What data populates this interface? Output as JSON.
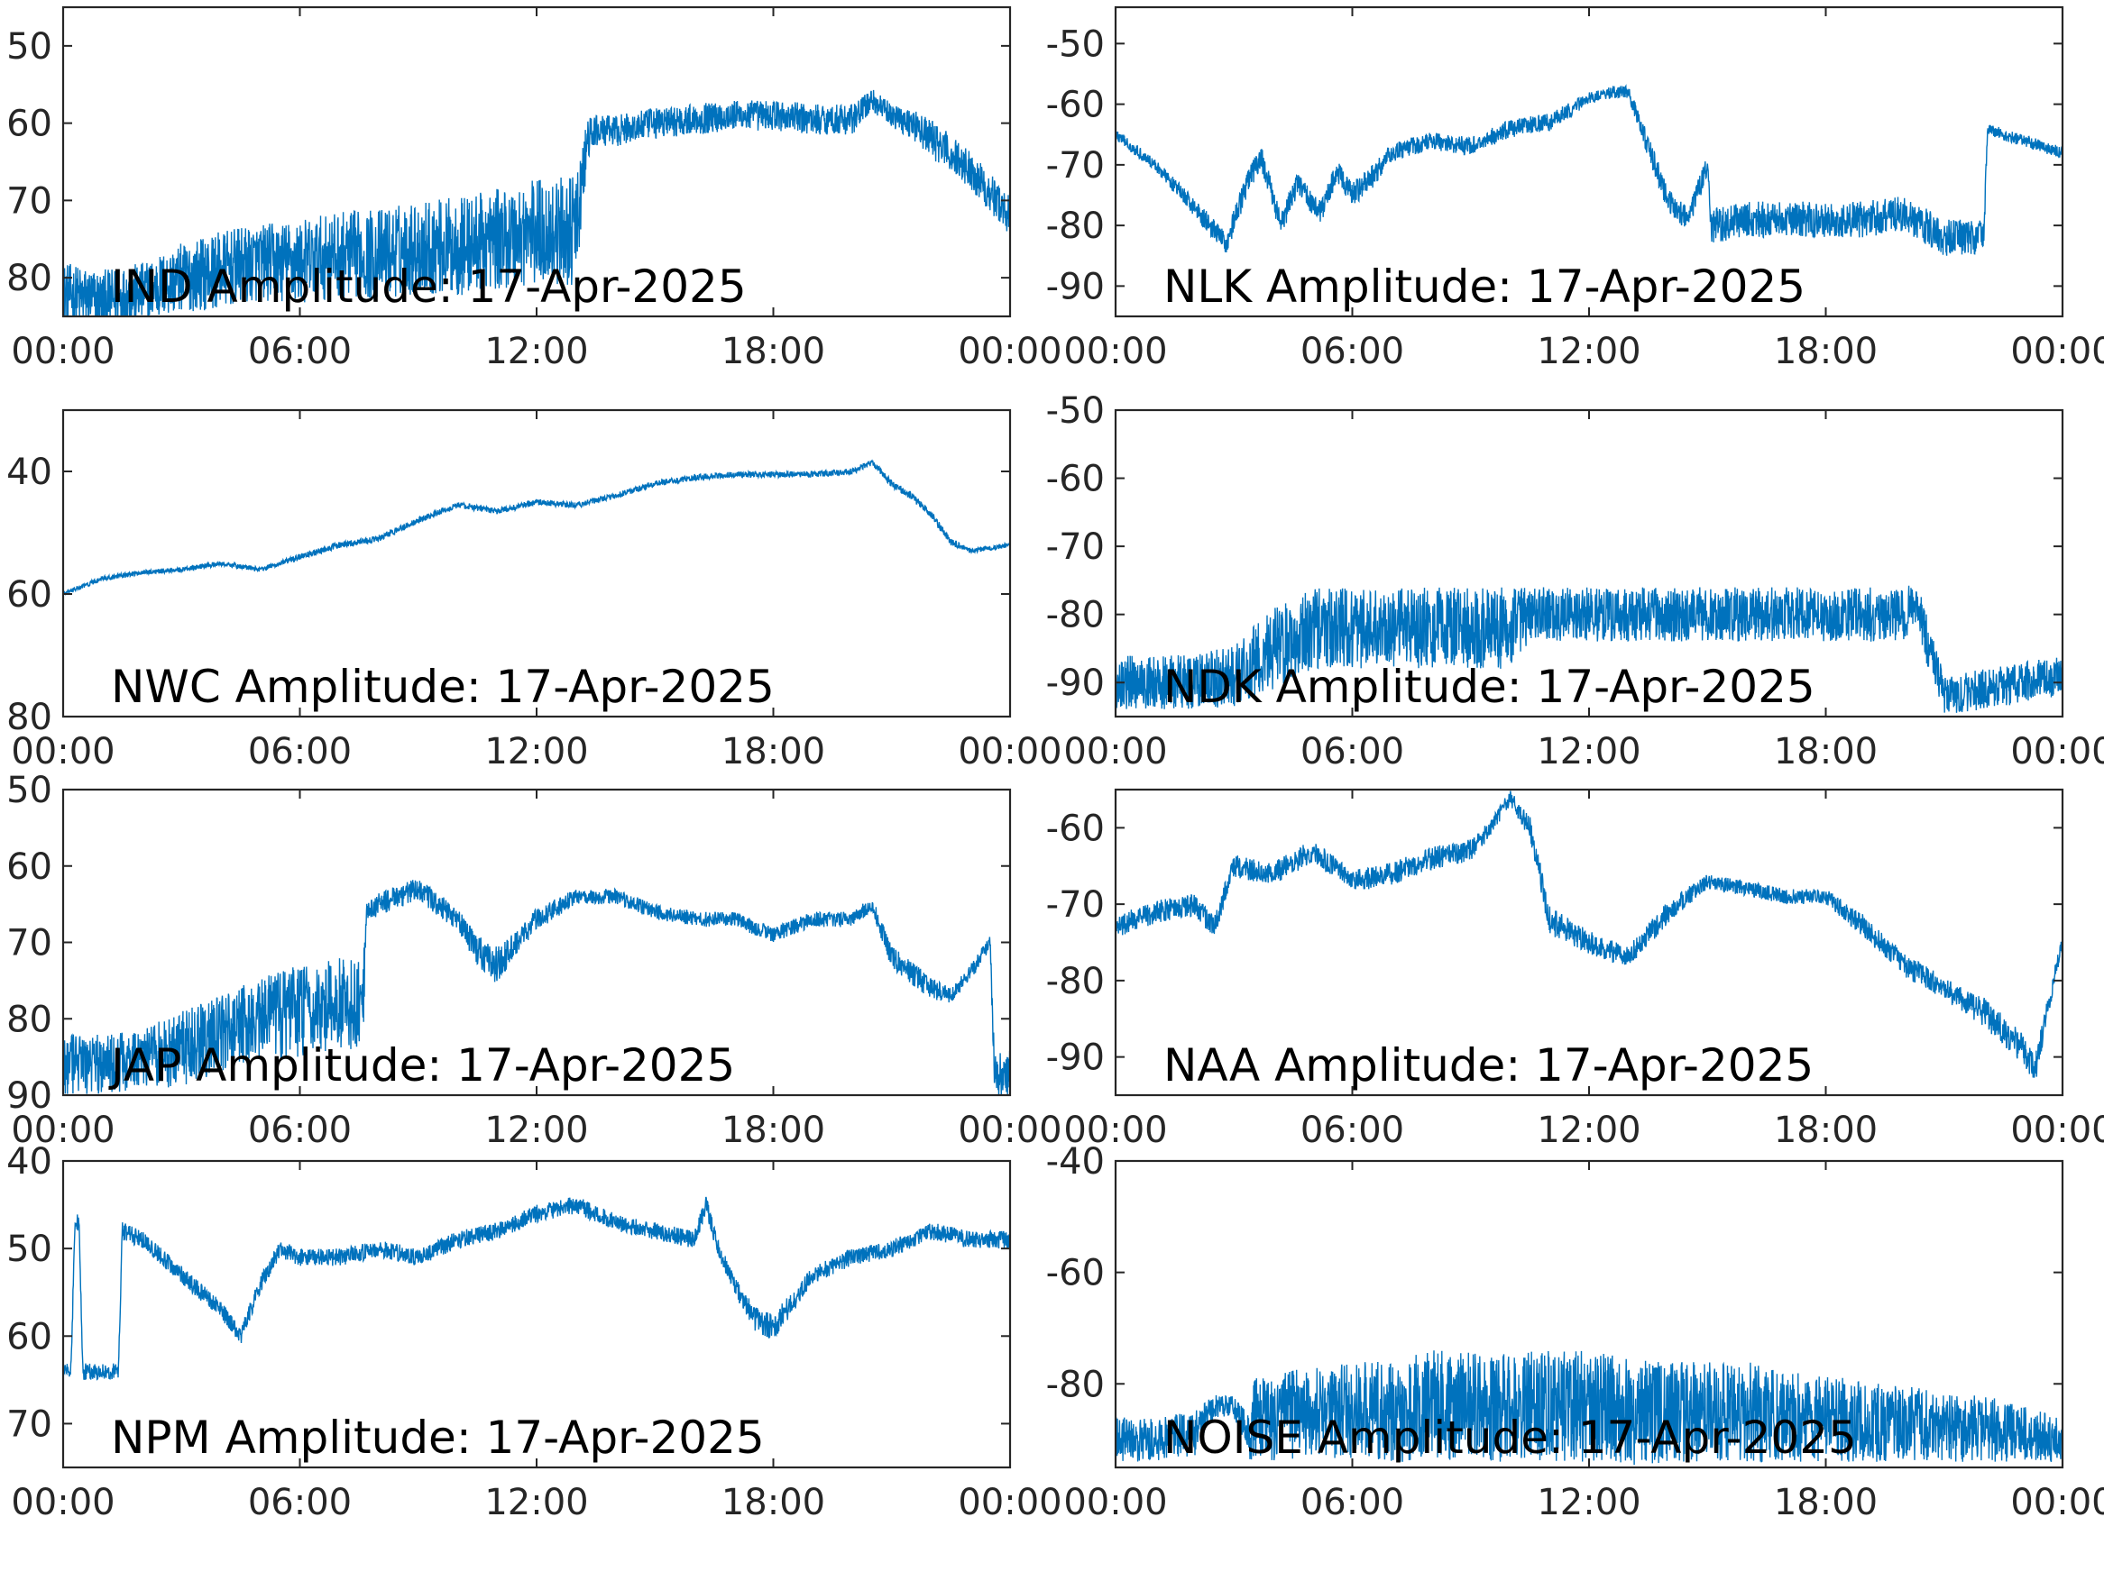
{
  "figure": {
    "line_color": "#0072BD",
    "axis_color": "#262626",
    "background": "#ffffff"
  },
  "chart_data": [
    {
      "type": "line",
      "title": "IND Amplitude: 17-Apr-2025",
      "xlabel": "",
      "ylabel": "",
      "x_ticks": [
        "00:00",
        "06:00",
        "12:00",
        "18:00",
        "00:00"
      ],
      "xlim_hours": [
        0,
        24
      ],
      "y_ticks": [
        -50,
        -60,
        -70,
        -80
      ],
      "y_tick_labels": [
        "50",
        "60",
        "70",
        "80"
      ],
      "ylim": [
        -85,
        -45
      ],
      "grid": false,
      "series": [
        {
          "x_hours": [
            0,
            1,
            2,
            3,
            4,
            5,
            6,
            7,
            8,
            9,
            10,
            11,
            12,
            13,
            13.3,
            13.5,
            14,
            15,
            16,
            17,
            18,
            19,
            20,
            20.5,
            21,
            21.5,
            22,
            23,
            24
          ],
          "values": [
            -82,
            -83,
            -82,
            -80,
            -79,
            -78,
            -78,
            -77,
            -77,
            -76,
            -76,
            -75,
            -74,
            -74,
            -62,
            -61,
            -61,
            -60,
            -59.5,
            -59,
            -59,
            -59.5,
            -59.5,
            -57,
            -59,
            -60,
            -62,
            -66,
            -72
          ],
          "noise_amplitude": [
            4,
            4,
            4,
            4.5,
            5,
            5,
            5.5,
            5.5,
            6,
            6,
            6.5,
            6.5,
            7,
            7,
            3,
            2,
            2,
            2,
            2,
            2,
            2,
            2,
            2,
            1.5,
            1.5,
            2,
            2.5,
            2.5,
            2.5
          ]
        }
      ]
    },
    {
      "type": "line",
      "title": "NLK Amplitude: 17-Apr-2025",
      "xlabel": "",
      "ylabel": "",
      "x_ticks": [
        "00:00",
        "06:00",
        "12:00",
        "18:00",
        "00:00"
      ],
      "xlim_hours": [
        0,
        24
      ],
      "y_ticks": [
        -50,
        -60,
        -70,
        -80,
        -90
      ],
      "y_tick_labels": [
        "-50",
        "-60",
        "-70",
        "-80",
        "-90"
      ],
      "ylim": [
        -95,
        -44
      ],
      "grid": false,
      "series": [
        {
          "x_hours": [
            0,
            1,
            2,
            2.8,
            3.4,
            3.7,
            4.2,
            4.6,
            5.2,
            5.6,
            6,
            6.5,
            7,
            8,
            9,
            10,
            11,
            12,
            12.6,
            13,
            13.5,
            14,
            14.5,
            15,
            15.1,
            16,
            17,
            18,
            19,
            20,
            21,
            22,
            22.1,
            22.5,
            23,
            24
          ],
          "values": [
            -65,
            -70,
            -77,
            -83,
            -72,
            -69,
            -80,
            -73,
            -78,
            -71,
            -75,
            -72,
            -68,
            -66,
            -67,
            -64,
            -63,
            -59,
            -58,
            -58,
            -67,
            -76,
            -79,
            -70,
            -80,
            -79,
            -79,
            -79,
            -79,
            -78,
            -82,
            -82,
            -64,
            -65,
            -66,
            -68
          ],
          "noise_amplitude": [
            1,
            1,
            1.5,
            2,
            2,
            2,
            2,
            2,
            2,
            2,
            2,
            2,
            1.5,
            1.5,
            1.5,
            1.5,
            1.5,
            1,
            1,
            1,
            2,
            2,
            2,
            2,
            3,
            3,
            3,
            3,
            3,
            3,
            3,
            3,
            1,
            1,
            1,
            1
          ]
        }
      ]
    },
    {
      "type": "line",
      "title": "NWC Amplitude: 17-Apr-2025",
      "xlabel": "",
      "ylabel": "",
      "x_ticks": [
        "00:00",
        "06:00",
        "12:00",
        "18:00",
        "00:00"
      ],
      "xlim_hours": [
        0,
        24
      ],
      "y_ticks": [
        -40,
        -60,
        -80
      ],
      "y_tick_labels": [
        "40",
        "60",
        "80"
      ],
      "ylim": [
        -80,
        -30
      ],
      "grid": false,
      "series": [
        {
          "x_hours": [
            0,
            1,
            2,
            3,
            4,
            5,
            6,
            7,
            8,
            9,
            10,
            11,
            12,
            13,
            14,
            15,
            16,
            17,
            18,
            19,
            20,
            20.5,
            21,
            21.5,
            22,
            22.5,
            23,
            24
          ],
          "values": [
            -60,
            -57.5,
            -56.5,
            -56,
            -55,
            -56,
            -54,
            -52,
            -51,
            -48,
            -45.5,
            -46.5,
            -45,
            -45.5,
            -44,
            -42,
            -41,
            -40.5,
            -40.5,
            -40.5,
            -40,
            -38.5,
            -42,
            -44,
            -47,
            -51.5,
            -53,
            -52
          ],
          "noise_amplitude": [
            0.4,
            0.4,
            0.4,
            0.4,
            0.4,
            0.4,
            0.5,
            0.5,
            0.5,
            0.5,
            0.5,
            0.5,
            0.5,
            0.5,
            0.5,
            0.5,
            0.5,
            0.5,
            0.5,
            0.5,
            0.5,
            0.5,
            0.6,
            0.6,
            0.6,
            0.6,
            0.4,
            0.4
          ]
        }
      ]
    },
    {
      "type": "line",
      "title": "NDK Amplitude: 17-Apr-2025",
      "xlabel": "",
      "ylabel": "",
      "x_ticks": [
        "00:00",
        "06:00",
        "12:00",
        "18:00",
        "00:00"
      ],
      "xlim_hours": [
        0,
        24
      ],
      "y_ticks": [
        -50,
        -60,
        -70,
        -80,
        -90
      ],
      "y_tick_labels": [
        "-50",
        "-60",
        "-70",
        "-80",
        "-90"
      ],
      "ylim": [
        -95,
        -50
      ],
      "grid": false,
      "series": [
        {
          "x_hours": [
            0,
            1,
            2,
            3,
            4,
            5,
            6,
            7,
            8,
            9,
            10,
            10.5,
            11,
            12,
            13,
            14,
            15,
            16,
            17,
            18,
            19,
            20,
            20.3,
            20.6,
            21,
            22,
            23,
            24
          ],
          "values": [
            -90,
            -90,
            -90,
            -89,
            -85,
            -82,
            -82,
            -82,
            -82,
            -82,
            -82,
            -80,
            -80,
            -80,
            -80,
            -80,
            -80,
            -80,
            -80,
            -80,
            -80,
            -80,
            -78,
            -85,
            -92,
            -91,
            -90,
            -89
          ],
          "noise_amplitude": [
            4,
            4,
            4,
            4.5,
            6,
            6,
            6,
            6,
            6,
            6,
            6,
            4,
            4,
            4,
            4,
            4,
            4,
            4,
            4,
            4,
            4,
            4,
            3,
            4,
            3,
            3,
            3,
            3
          ]
        }
      ]
    },
    {
      "type": "line",
      "title": "JAP Amplitude: 17-Apr-2025",
      "xlabel": "",
      "ylabel": "",
      "x_ticks": [
        "00:00",
        "06:00",
        "12:00",
        "18:00",
        "00:00"
      ],
      "xlim_hours": [
        0,
        24
      ],
      "y_ticks": [
        -50,
        -60,
        -70,
        -80,
        -90
      ],
      "y_tick_labels": [
        "50",
        "60",
        "70",
        "80",
        "90"
      ],
      "ylim": [
        -90,
        -50
      ],
      "grid": false,
      "series": [
        {
          "x_hours": [
            0,
            1,
            2,
            3,
            4,
            5,
            6,
            7,
            7.6,
            7.7,
            8,
            9,
            10,
            10.5,
            11,
            11.5,
            12,
            13,
            14,
            15,
            16,
            17,
            18,
            19,
            20,
            20.5,
            21,
            22,
            22.5,
            23,
            23.5,
            23.6,
            24
          ],
          "values": [
            -86,
            -86,
            -85,
            -84,
            -82,
            -80,
            -79,
            -78,
            -78,
            -66,
            -65,
            -63,
            -67,
            -71,
            -73,
            -70,
            -67,
            -64,
            -64,
            -66,
            -67,
            -67,
            -69,
            -67,
            -67,
            -65,
            -72,
            -76,
            -77,
            -74,
            -70,
            -87,
            -87
          ],
          "noise_amplitude": [
            4,
            4,
            4,
            5,
            5,
            5.5,
            6,
            6,
            6,
            1.5,
            1.5,
            1.5,
            1.5,
            2,
            2.5,
            1.5,
            1.5,
            1,
            1,
            1,
            1,
            1,
            1,
            1,
            1,
            1,
            1.5,
            1.5,
            1,
            1,
            1,
            3,
            3
          ]
        }
      ]
    },
    {
      "type": "line",
      "title": "NAA Amplitude: 17-Apr-2025",
      "xlabel": "",
      "ylabel": "",
      "x_ticks": [
        "00:00",
        "06:00",
        "12:00",
        "18:00",
        "00:00"
      ],
      "xlim_hours": [
        0,
        24
      ],
      "y_ticks": [
        -60,
        -70,
        -80,
        -90
      ],
      "y_tick_labels": [
        "-60",
        "-70",
        "-80",
        "-90"
      ],
      "ylim": [
        -95,
        -55
      ],
      "grid": false,
      "series": [
        {
          "x_hours": [
            0,
            1,
            2,
            2.5,
            3,
            4,
            5,
            6,
            7,
            8,
            9,
            9.5,
            10,
            10.5,
            11,
            12,
            13,
            14,
            15,
            16,
            17,
            18,
            19,
            20,
            21,
            22,
            23,
            23.3,
            23.6,
            24
          ],
          "values": [
            -73,
            -71,
            -70,
            -73,
            -65,
            -66,
            -63,
            -67,
            -66,
            -64,
            -63,
            -60,
            -56,
            -60,
            -72,
            -75,
            -77,
            -71,
            -67,
            -68,
            -69,
            -69,
            -73,
            -78,
            -81,
            -84,
            -89,
            -92,
            -84,
            -75
          ],
          "noise_amplitude": [
            1.5,
            1.5,
            1.5,
            1.5,
            1.5,
            1.5,
            1.5,
            1.5,
            1.5,
            1.5,
            1.5,
            1,
            1,
            1.5,
            2,
            1.5,
            1.5,
            1.5,
            1,
            1,
            1,
            1,
            1.5,
            1.5,
            1.5,
            2,
            2,
            2,
            1.5,
            1
          ]
        }
      ]
    },
    {
      "type": "line",
      "title": "NPM Amplitude: 17-Apr-2025",
      "xlabel": "",
      "ylabel": "",
      "x_ticks": [
        "00:00",
        "06:00",
        "12:00",
        "18:00",
        "00:00"
      ],
      "xlim_hours": [
        0,
        24
      ],
      "y_ticks": [
        -40,
        -50,
        -60,
        -70
      ],
      "y_tick_labels": [
        "40",
        "50",
        "60",
        "70"
      ],
      "ylim": [
        -75,
        -40
      ],
      "grid": false,
      "series": [
        {
          "x_hours": [
            0,
            0.2,
            0.3,
            0.4,
            0.5,
            1,
            1.4,
            1.5,
            2,
            3,
            4,
            4.5,
            5,
            5.5,
            6,
            7,
            8,
            9,
            10,
            11,
            12,
            13,
            14,
            15,
            16,
            16.3,
            16.6,
            17,
            17.5,
            18,
            19,
            20,
            21,
            22,
            23,
            24
          ],
          "values": [
            -64,
            -64,
            -47,
            -47,
            -64,
            -64,
            -64,
            -48,
            -49,
            -53,
            -57,
            -60,
            -54,
            -50,
            -51,
            -51,
            -50,
            -51,
            -49,
            -48,
            -46,
            -45,
            -47,
            -48,
            -49,
            -45,
            -50,
            -54,
            -58,
            -59,
            -53,
            -51,
            -50,
            -48,
            -49,
            -49
          ],
          "noise_amplitude": [
            1,
            1,
            1,
            1,
            1,
            1,
            1,
            1,
            1,
            1,
            1,
            1,
            1,
            1,
            1,
            1,
            1,
            1,
            1,
            1,
            1,
            1,
            1,
            1,
            1,
            1,
            1,
            1,
            1.5,
            1.5,
            1,
            1,
            1,
            1,
            1,
            1
          ]
        }
      ]
    },
    {
      "type": "line",
      "title": "NOISE Amplitude: 17-Apr-2025",
      "xlabel": "",
      "ylabel": "",
      "x_ticks": [
        "00:00",
        "06:00",
        "12:00",
        "18:00",
        "00:00"
      ],
      "xlim_hours": [
        0,
        24
      ],
      "y_ticks": [
        -40,
        -60,
        -80
      ],
      "y_tick_labels": [
        "-40",
        "-60",
        "-80"
      ],
      "ylim": [
        -95,
        -40
      ],
      "grid": false,
      "series": [
        {
          "x_hours": [
            0,
            1,
            2,
            2.5,
            3,
            3.4,
            3.5,
            4,
            5,
            6,
            7,
            8,
            9,
            10,
            11,
            12,
            13,
            14,
            15,
            16,
            17,
            18,
            19,
            20,
            21,
            22,
            23,
            24
          ],
          "values": [
            -90,
            -90,
            -89,
            -84,
            -84,
            -90,
            -86,
            -86,
            -85,
            -85,
            -85,
            -84,
            -84,
            -84,
            -84,
            -84,
            -85,
            -85,
            -85,
            -85,
            -86,
            -86,
            -87,
            -87,
            -88,
            -88,
            -89,
            -90
          ],
          "noise_amplitude": [
            4,
            4,
            4,
            2,
            2,
            4,
            7,
            8,
            8,
            9,
            9,
            10,
            10,
            10,
            10,
            10,
            10,
            9,
            9,
            9,
            8,
            8,
            7,
            7,
            6,
            6,
            5,
            4
          ]
        }
      ]
    }
  ]
}
